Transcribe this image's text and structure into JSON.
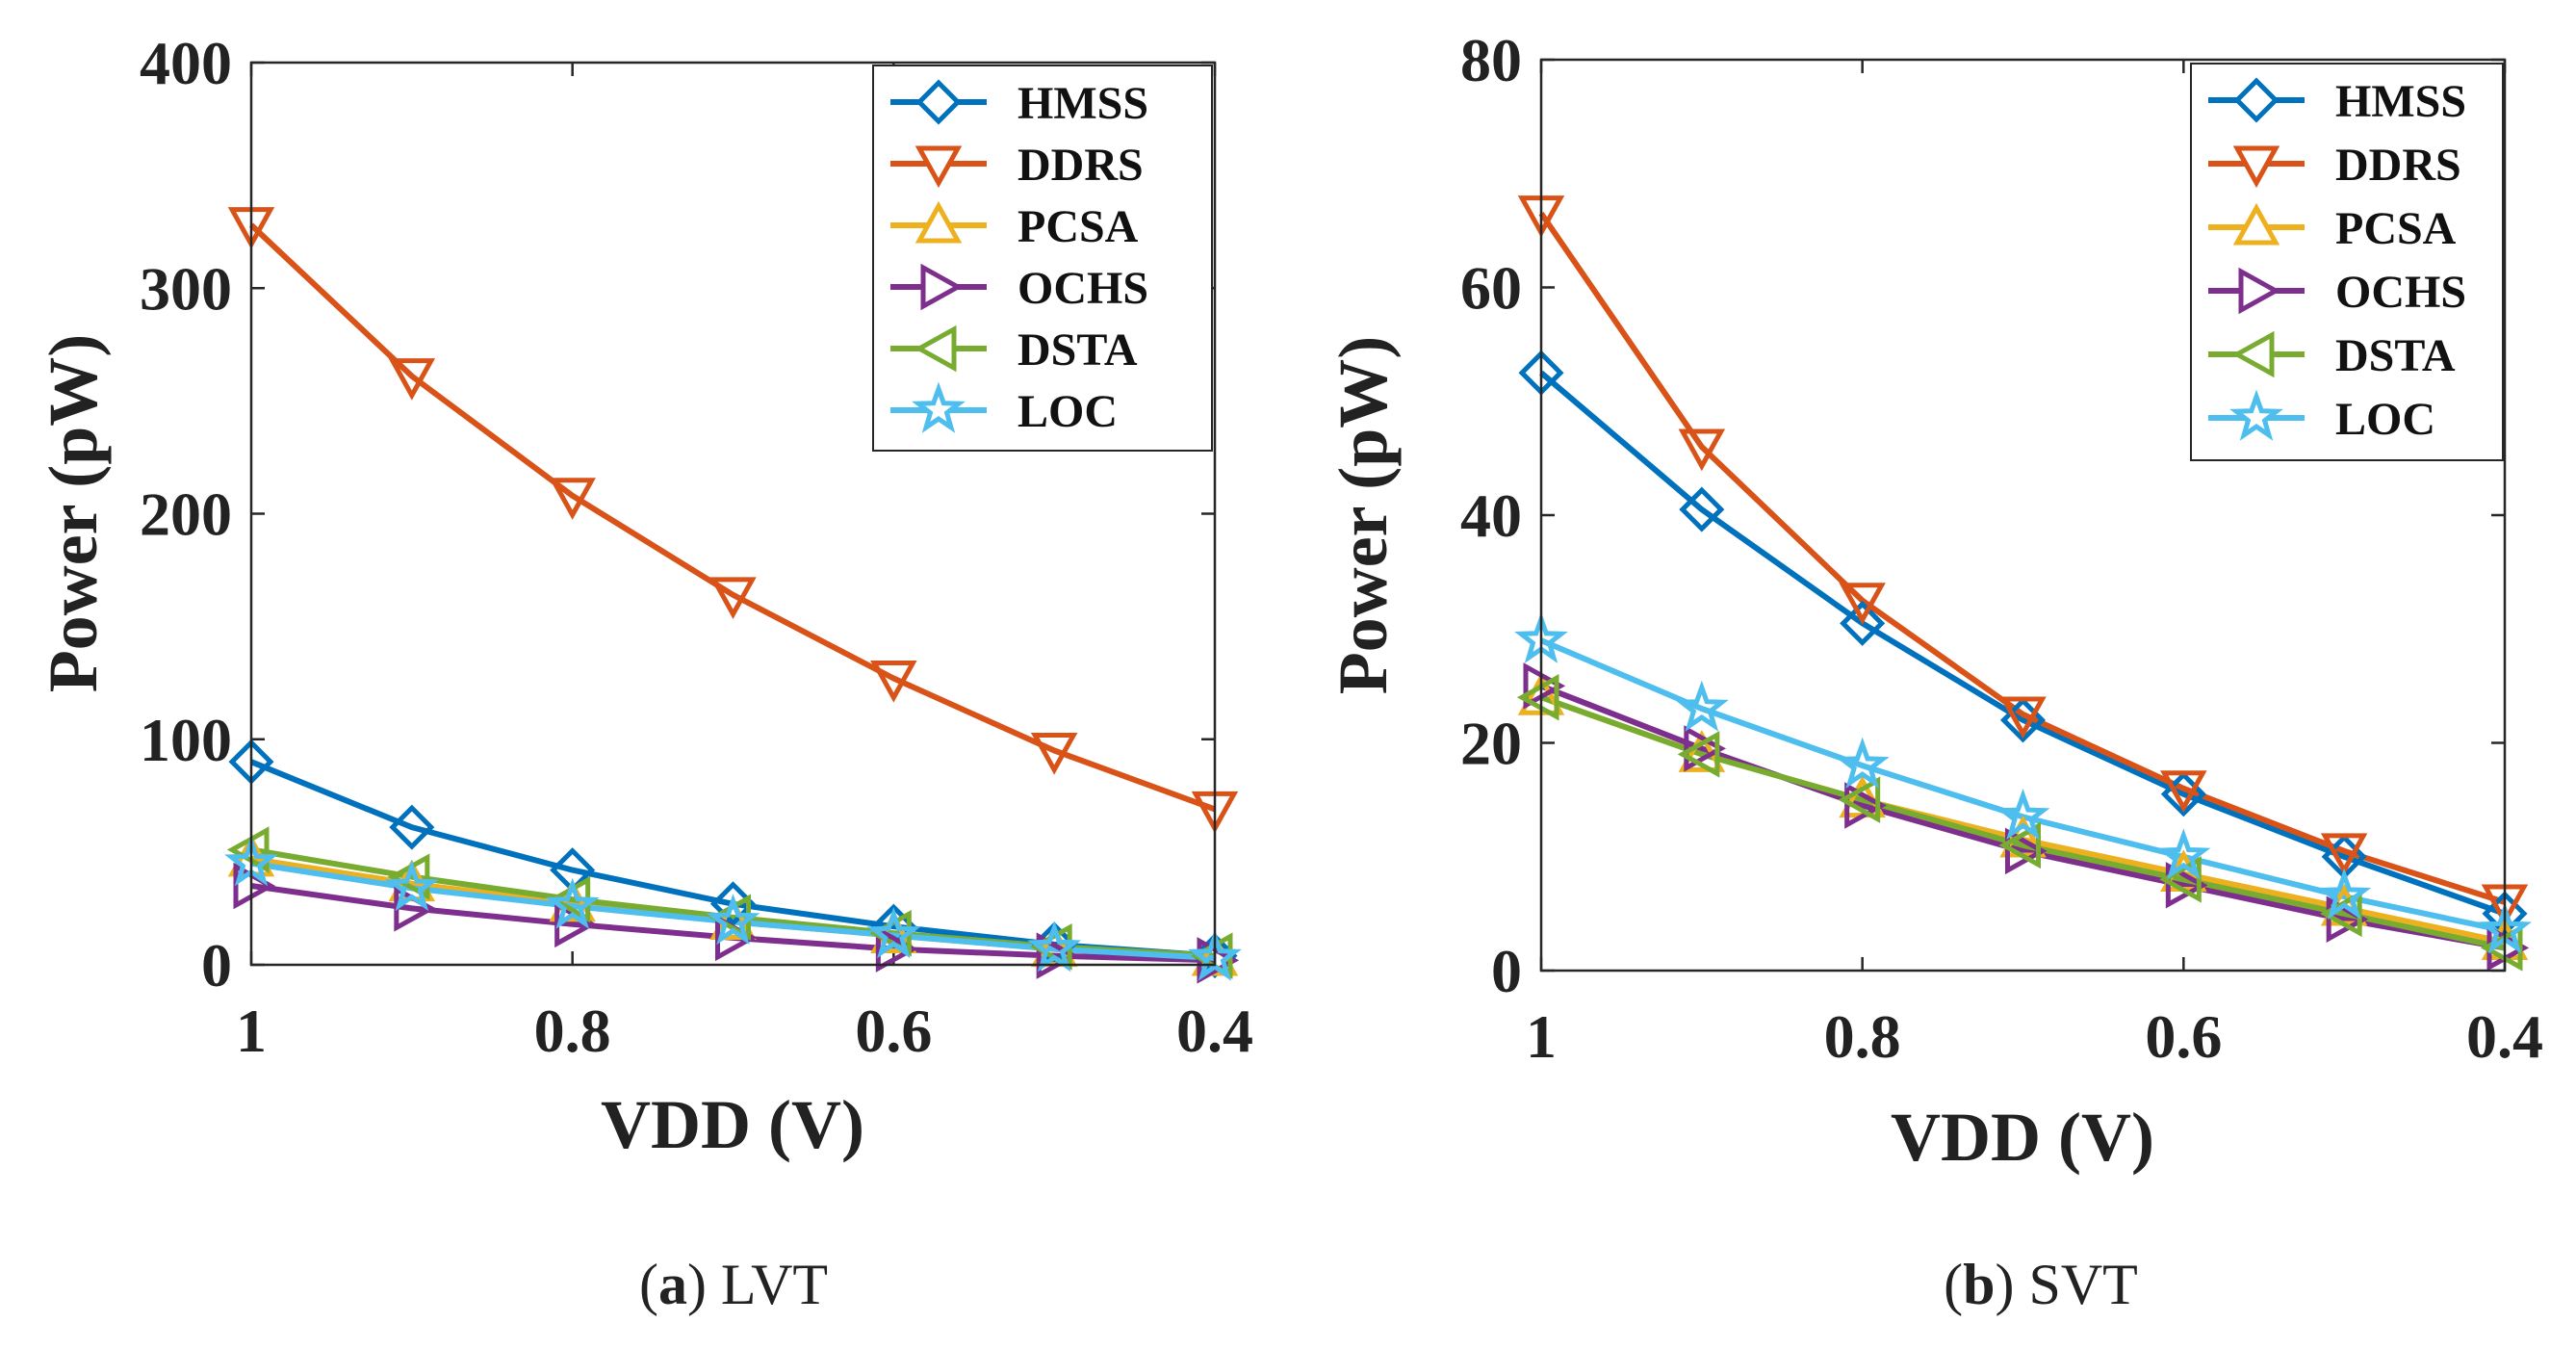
{
  "chart_data": [
    {
      "type": "line",
      "caption_letter": "a",
      "caption_text": "LVT",
      "xlabel": "VDD (V)",
      "ylabel": "Power (pW)",
      "xlim": [
        1.0,
        0.4
      ],
      "ylim": [
        0,
        400
      ],
      "x": [
        1.0,
        0.9,
        0.8,
        0.7,
        0.6,
        0.5,
        0.4
      ],
      "xticks": [
        "1",
        "0.8",
        "0.6",
        "0.4"
      ],
      "yticks": [
        "0",
        "100",
        "200",
        "300",
        "400"
      ],
      "legend_position": "top-right",
      "series": [
        {
          "name": "HMSS",
          "color": "#0072BD",
          "marker": "diamond",
          "values": [
            90,
            61,
            42,
            27,
            17,
            9,
            4
          ]
        },
        {
          "name": "DDRS",
          "color": "#D95319",
          "marker": "triangle-down",
          "values": [
            328,
            261,
            208,
            164,
            127,
            95,
            69
          ]
        },
        {
          "name": "PCSA",
          "color": "#EDB120",
          "marker": "triangle-up",
          "values": [
            47,
            36,
            27,
            19,
            13,
            7,
            3
          ]
        },
        {
          "name": "OCHS",
          "color": "#7E2F8E",
          "marker": "triangle-right",
          "values": [
            35,
            25,
            18,
            12,
            7,
            4,
            2
          ]
        },
        {
          "name": "DSTA",
          "color": "#77AC30",
          "marker": "triangle-left",
          "values": [
            51,
            39,
            29,
            21,
            14,
            8,
            4
          ]
        },
        {
          "name": "LOC",
          "color": "#4DBEEE",
          "marker": "star",
          "values": [
            45,
            34,
            26,
            19,
            13,
            7,
            3
          ]
        }
      ]
    },
    {
      "type": "line",
      "caption_letter": "b",
      "caption_text": "SVT",
      "xlabel": "VDD (V)",
      "ylabel": "Power (pW)",
      "xlim": [
        1.0,
        0.4
      ],
      "ylim": [
        0,
        80
      ],
      "x": [
        1.0,
        0.9,
        0.8,
        0.7,
        0.6,
        0.5,
        0.4
      ],
      "xticks": [
        "1",
        "0.8",
        "0.6",
        "0.4"
      ],
      "yticks": [
        "0",
        "20",
        "40",
        "60",
        "80"
      ],
      "legend_position": "top-right",
      "series": [
        {
          "name": "HMSS",
          "color": "#0072BD",
          "marker": "diamond",
          "values": [
            52.5,
            40.5,
            30.5,
            22,
            15.5,
            10,
            5
          ]
        },
        {
          "name": "DDRS",
          "color": "#D95319",
          "marker": "triangle-down",
          "values": [
            66.5,
            46,
            32.5,
            22.5,
            16,
            10.5,
            6
          ]
        },
        {
          "name": "PCSA",
          "color": "#EDB120",
          "marker": "triangle-up",
          "values": [
            24,
            19,
            15,
            11.5,
            8.5,
            5.5,
            2.5
          ]
        },
        {
          "name": "OCHS",
          "color": "#7E2F8E",
          "marker": "triangle-right",
          "values": [
            25,
            19.5,
            14.5,
            10.5,
            7.5,
            4.5,
            2
          ]
        },
        {
          "name": "DSTA",
          "color": "#77AC30",
          "marker": "triangle-left",
          "values": [
            24,
            19,
            15,
            11,
            8,
            5,
            2
          ]
        },
        {
          "name": "LOC",
          "color": "#4DBEEE",
          "marker": "star",
          "values": [
            29,
            23,
            18,
            13.5,
            10,
            6.5,
            3.5
          ]
        }
      ]
    }
  ]
}
